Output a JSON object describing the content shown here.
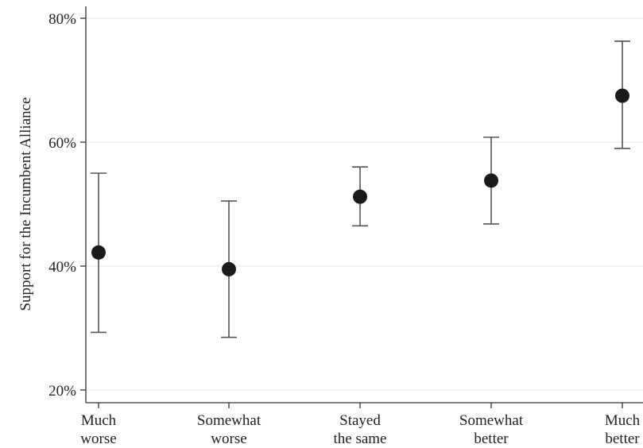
{
  "chart_data": {
    "type": "scatter",
    "xlabel": "",
    "ylabel": "Support for the Incumbent Alliance",
    "categories": [
      {
        "line1": "Much",
        "line2": "worse"
      },
      {
        "line1": "Somewhat",
        "line2": "worse"
      },
      {
        "line1": "Stayed",
        "line2": "the same"
      },
      {
        "line1": "Somewhat",
        "line2": "better"
      },
      {
        "line1": "Much",
        "line2": "better"
      }
    ],
    "values": [
      42.2,
      39.5,
      51.2,
      53.8,
      67.5
    ],
    "ci_low": [
      29.3,
      28.5,
      46.5,
      46.8,
      59.0
    ],
    "ci_high": [
      55.0,
      50.5,
      56.0,
      60.8,
      76.3
    ],
    "ylim": [
      20,
      80
    ],
    "yticks": [
      20,
      40,
      60,
      80
    ],
    "ytick_labels": [
      "20%",
      "40%",
      "60%",
      "80%"
    ],
    "grid": true,
    "colors": {
      "marker": "#1a1a1a",
      "errorbar": "#555555",
      "grid": "#ececec",
      "axis": "#333333"
    }
  }
}
